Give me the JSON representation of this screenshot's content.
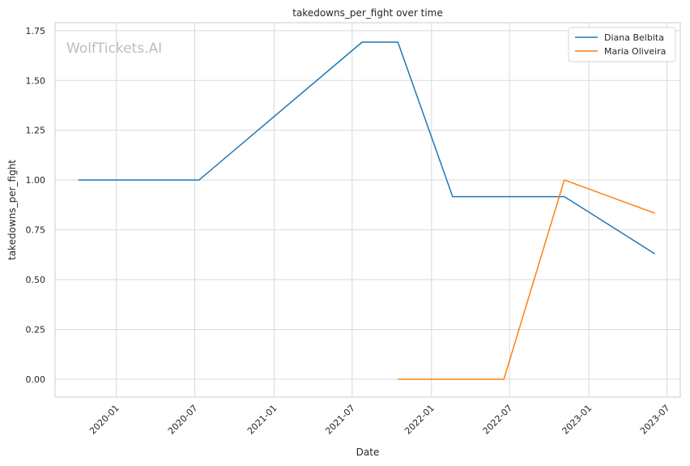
{
  "chart_data": {
    "type": "line",
    "title": "takedowns_per_fight over time",
    "xlabel": "Date",
    "ylabel": "takedowns_per_fight",
    "watermark": "WolfTickets.AI",
    "x_ticks": [
      "2020-01",
      "2020-07",
      "2021-01",
      "2021-07",
      "2022-01",
      "2022-07",
      "2023-01",
      "2023-07"
    ],
    "y_ticks": [
      "0.00",
      "0.25",
      "0.50",
      "0.75",
      "1.00",
      "1.25",
      "1.50",
      "1.75"
    ],
    "xlim": [
      "2019-08-12",
      "2023-08-01"
    ],
    "ylim": [
      -0.09,
      1.79
    ],
    "grid": true,
    "legend_position": "top-right",
    "series": [
      {
        "name": "Diana Belbita",
        "color": "#1f77b4",
        "points": [
          {
            "x": "2019-10-05",
            "y": 1.0
          },
          {
            "x": "2020-07-11",
            "y": 1.0
          },
          {
            "x": "2021-07-24",
            "y": 1.6923
          },
          {
            "x": "2021-10-15",
            "y": 1.6923
          },
          {
            "x": "2022-02-19",
            "y": 0.9167
          },
          {
            "x": "2022-11-05",
            "y": 0.9167
          },
          {
            "x": "2023-06-03",
            "y": 0.6296
          }
        ]
      },
      {
        "name": "Maria Oliveira",
        "color": "#ff7f0e",
        "points": [
          {
            "x": "2021-10-15",
            "y": 0.0
          },
          {
            "x": "2022-06-18",
            "y": 0.0
          },
          {
            "x": "2022-11-05",
            "y": 1.0
          },
          {
            "x": "2023-06-03",
            "y": 0.8333
          }
        ]
      }
    ]
  }
}
